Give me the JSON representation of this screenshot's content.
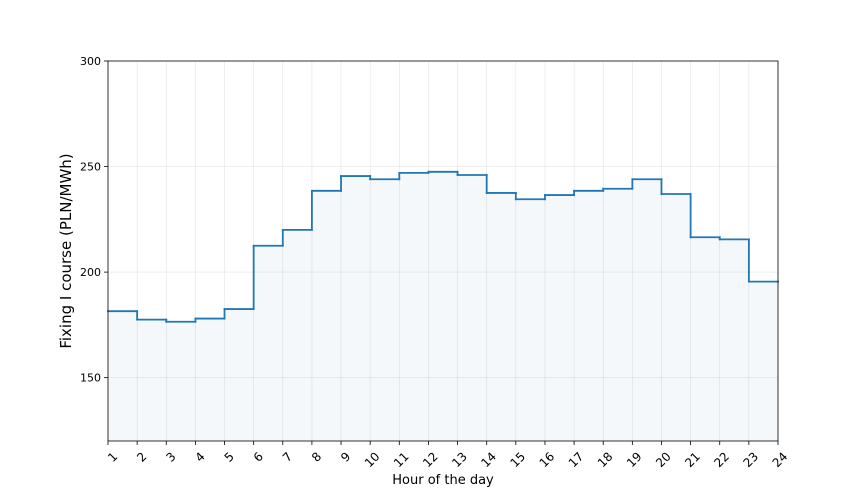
{
  "chart_data": {
    "type": "step",
    "title": "",
    "xlabel": "Hour of the day",
    "ylabel": "Fixing I course (PLN/MWh)",
    "xlim": [
      1,
      24
    ],
    "ylim": [
      120,
      300
    ],
    "x_ticks": [
      "1",
      "2",
      "3",
      "4",
      "5",
      "6",
      "7",
      "8",
      "9",
      "10",
      "11",
      "12",
      "13",
      "14",
      "15",
      "16",
      "17",
      "18",
      "19",
      "20",
      "21",
      "22",
      "23",
      "24"
    ],
    "y_ticks": [
      "150",
      "200",
      "250",
      "300"
    ],
    "y_tick_values": [
      150,
      200,
      250,
      300
    ],
    "grid": true,
    "fill_under": true,
    "line_color": "#1f77b4",
    "fill_color": "#1f77b4",
    "series": [
      {
        "hours": [
          1,
          2,
          3,
          4,
          5,
          6,
          7,
          8,
          9,
          10,
          11,
          12,
          13,
          14,
          15,
          16,
          17,
          18,
          19,
          20,
          21,
          22,
          23
        ],
        "values": [
          181.5,
          177.5,
          176.5,
          178.0,
          182.5,
          212.5,
          220.0,
          238.5,
          245.5,
          244.0,
          247.0,
          247.5,
          246.0,
          237.5,
          234.5,
          236.5,
          238.5,
          239.5,
          244.0,
          237.0,
          216.5,
          215.5,
          195.5
        ]
      }
    ]
  }
}
